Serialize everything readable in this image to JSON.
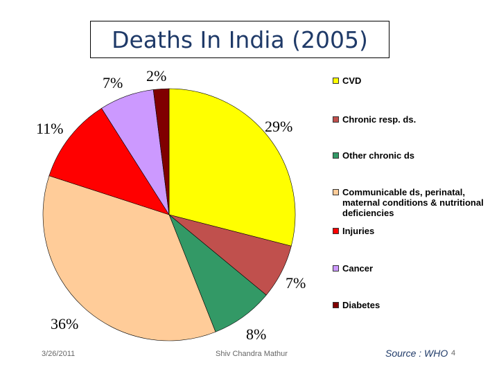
{
  "chart_data": {
    "type": "pie",
    "title": "Deaths In India (2005)",
    "slices": [
      {
        "label": "CVD",
        "value": 29,
        "pct_label": "29%",
        "color": "#ffff00"
      },
      {
        "label": "Chronic resp. ds.",
        "value": 7,
        "pct_label": "7%",
        "color": "#c0504d"
      },
      {
        "label": "Other chronic ds",
        "value": 8,
        "pct_label": "8%",
        "color": "#339966"
      },
      {
        "label": "Communicable ds, perinatal, maternal conditions & nutritional deficiencies",
        "value": 36,
        "pct_label": "36%",
        "color": "#ffcc99"
      },
      {
        "label": "Injuries",
        "value": 11,
        "pct_label": "11%",
        "color": "#ff0000"
      },
      {
        "label": "Cancer",
        "value": 7,
        "pct_label": "7%",
        "color": "#cc99ff"
      },
      {
        "label": "Diabetes",
        "value": 2,
        "pct_label": "2%",
        "color": "#800000"
      }
    ],
    "legend_position": "right"
  },
  "footer": {
    "date": "3/26/2011",
    "author": "Shiv Chandra Mathur",
    "source": "Source : WHO",
    "page": "4"
  }
}
